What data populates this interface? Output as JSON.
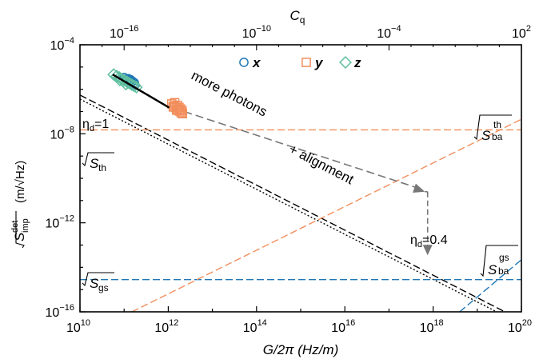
{
  "chart_data": {
    "type": "scatter",
    "xlabel": "G/2π (Hz/m)",
    "ylabel_unit": "(m/√Hz)",
    "ylabel_symbol": "√S_imp^det",
    "x2label": "C_q",
    "x_scale": "log",
    "y_scale": "log",
    "xlim": [
      10000000000.0,
      1e+20
    ],
    "ylim": [
      1e-16,
      0.0001
    ],
    "x2lim": [
      1e-18,
      100.0
    ],
    "x_ticks": [
      {
        "value": 10000000000.0,
        "base": "10",
        "exp": "10"
      },
      {
        "value": 1000000000000.0,
        "base": "10",
        "exp": "12"
      },
      {
        "value": 100000000000000.0,
        "base": "10",
        "exp": "14"
      },
      {
        "value": 1e+16,
        "base": "10",
        "exp": "16"
      },
      {
        "value": 1e+18,
        "base": "10",
        "exp": "18"
      },
      {
        "value": 1e+20,
        "base": "10",
        "exp": "20"
      }
    ],
    "y_ticks": [
      {
        "value": 0.0001,
        "base": "10",
        "exp": "−4"
      },
      {
        "value": 1e-08,
        "base": "10",
        "exp": "−8"
      },
      {
        "value": 1e-12,
        "base": "10",
        "exp": "−12"
      },
      {
        "value": 1e-16,
        "base": "10",
        "exp": "−16"
      }
    ],
    "x2_ticks": [
      {
        "value": 1e-16,
        "base": "10",
        "exp": "−16"
      },
      {
        "value": 1e-10,
        "base": "10",
        "exp": "−10"
      },
      {
        "value": 0.0001,
        "base": "10",
        "exp": "−4"
      },
      {
        "value": 100.0,
        "base": "10",
        "exp": "2"
      }
    ],
    "legend": {
      "placement": "top-center",
      "entries": [
        {
          "label": "x",
          "marker": "circle",
          "color": "#1f77b4"
        },
        {
          "label": "y",
          "marker": "square",
          "color": "#f28e5c"
        },
        {
          "label": "z",
          "marker": "diamond",
          "color": "#5fbf9f"
        }
      ]
    },
    "series": [
      {
        "label": "x",
        "marker": "circle",
        "color": "#1f77b4",
        "points": [
          [
            100000000000.0,
            3.4e-06
          ],
          [
            115000000000.0,
            2.9e-06
          ],
          [
            130000000000.0,
            2.5e-06
          ],
          [
            145000000000.0,
            2.1e-06
          ],
          [
            160000000000.0,
            1.8e-06
          ],
          [
            175000000000.0,
            1.6e-06
          ],
          [
            125000000000.0,
            3e-06
          ],
          [
            140000000000.0,
            2.7e-06
          ],
          [
            155000000000.0,
            2.3e-06
          ],
          [
            170000000000.0,
            2e-06
          ],
          [
            110000000000.0,
            2.6e-06
          ],
          [
            135000000000.0,
            2.2e-06
          ]
        ]
      },
      {
        "label": "y",
        "marker": "square",
        "color": "#f28e5c",
        "points": [
          [
            1200000000000.0,
            2.2e-07
          ],
          [
            1350000000000.0,
            1.8e-07
          ],
          [
            1500000000000.0,
            1.5e-07
          ],
          [
            1650000000000.0,
            1.25e-07
          ],
          [
            1800000000000.0,
            1.05e-07
          ],
          [
            1950000000000.0,
            9e-08
          ],
          [
            2100000000000.0,
            8e-08
          ],
          [
            1400000000000.0,
            2.5e-07
          ],
          [
            1600000000000.0,
            1.9e-07
          ],
          [
            1750000000000.0,
            1.55e-07
          ],
          [
            1900000000000.0,
            1.3e-07
          ],
          [
            2050000000000.0,
            1.1e-07
          ],
          [
            1300000000000.0,
            1.6e-07
          ],
          [
            1550000000000.0,
            1.15e-07
          ]
        ]
      },
      {
        "label": "z",
        "marker": "diamond",
        "color": "#5fbf9f",
        "points": [
          [
            58000000000.0,
            4.6e-06
          ],
          [
            68000000000.0,
            3.9e-06
          ],
          [
            78000000000.0,
            3.4e-06
          ],
          [
            88000000000.0,
            2.9e-06
          ],
          [
            100000000000.0,
            2.5e-06
          ],
          [
            115000000000.0,
            2.2e-06
          ],
          [
            130000000000.0,
            1.9e-06
          ],
          [
            150000000000.0,
            1.6e-06
          ],
          [
            170000000000.0,
            1.4e-06
          ],
          [
            190000000000.0,
            1.25e-06
          ],
          [
            80000000000.0,
            2.6e-06
          ],
          [
            110000000000.0,
            1.7e-06
          ]
        ]
      }
    ],
    "lines": [
      {
        "name": "fit",
        "style": "solid",
        "color": "#000000",
        "points": [
          [
            55000000000.0,
            4.6e-06
          ],
          [
            1050000000000.0,
            1.5e-07
          ]
        ]
      },
      {
        "name": "ηd=1",
        "style": "dotted",
        "color": "#000000",
        "points": [
          [
            10000000000.0,
            3.6e-07
          ],
          [
            1e+20,
            2.7e-17
          ]
        ]
      },
      {
        "name": "ηd=0.4",
        "style": "dashed",
        "color": "#000000",
        "points": [
          [
            10000000000.0,
            5.5e-07
          ],
          [
            1e+20,
            4.2e-17
          ]
        ]
      },
      {
        "name": "√S_th",
        "style": "dashed",
        "color": "#f28e5c",
        "points": [
          [
            10000000000.0,
            1.5e-08
          ],
          [
            1e+20,
            1.5e-08
          ]
        ]
      },
      {
        "name": "√S_gs",
        "style": "dashed",
        "color": "#1f77b4",
        "points": [
          [
            10000000000.0,
            2.8e-15
          ],
          [
            1e+20,
            2.8e-15
          ]
        ]
      },
      {
        "name": "√S_ba^th",
        "style": "dashed",
        "color": "#f28e5c",
        "points": [
          [
            150000000000.0,
            1e-16
          ],
          [
            1e+20,
            4.5e-08
          ]
        ]
      },
      {
        "name": "√S_ba^gs",
        "style": "dashed",
        "color": "#1f77b4",
        "points": [
          [
            4e+18,
            1e-16
          ],
          [
            1e+20,
            2.2e-14
          ]
        ]
      }
    ],
    "annotations": {
      "more_photons": "more photons",
      "alignment": "+ alignment",
      "eta_d_1": "η",
      "eta_d_1_sub": "d",
      "eta_d_1_val": "=1",
      "eta_d_04": "η",
      "eta_d_04_sub": "d",
      "eta_d_04_val": "=0.4",
      "s_th": "S",
      "s_th_sub": "th",
      "s_gs": "S",
      "s_gs_sub": "gs",
      "s_ba_th": "S",
      "s_ba_th_sup": "th",
      "s_ba_th_sub": "ba",
      "s_ba_gs": "S",
      "s_ba_gs_sup": "gs",
      "s_ba_gs_sub": "ba"
    },
    "arrow_path": [
      [
        2300000000000.0,
        1e-07
      ],
      [
        6.5e+17,
        2.5e-11
      ],
      [
        7.5e+17,
        2.5e-11
      ],
      [
        7.5e+17,
        3.5e-14
      ]
    ]
  }
}
